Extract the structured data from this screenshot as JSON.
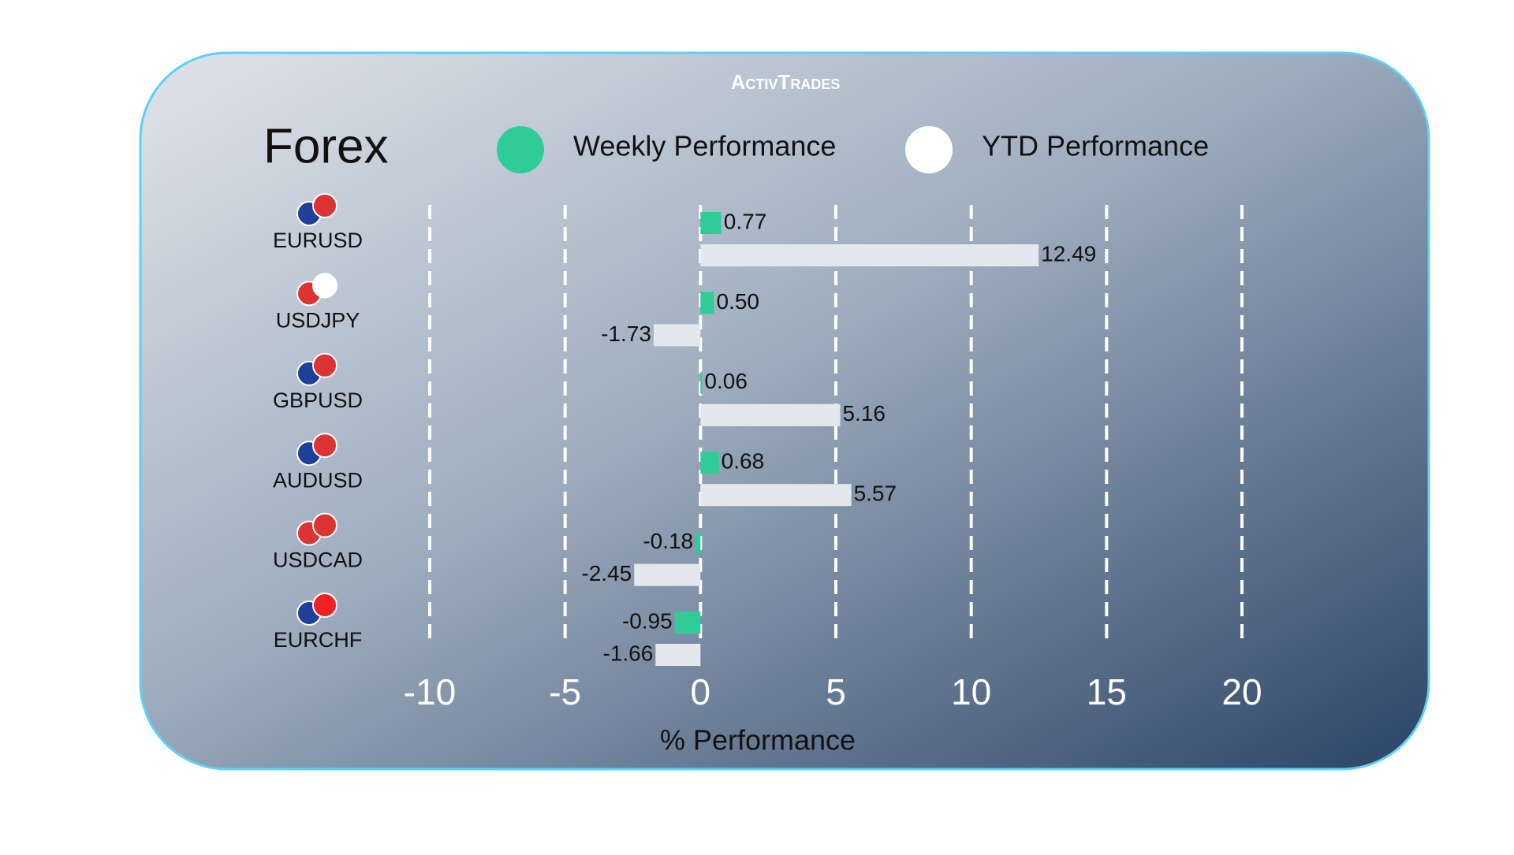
{
  "brand": "ActivTrades",
  "chart_data": {
    "type": "hbar",
    "title": "Forex",
    "x_label": "% Performance",
    "categories": [
      "EURUSD",
      "USDJPY",
      "GBPUSD",
      "AUDUSD",
      "USDCAD",
      "EURCHF"
    ],
    "series": [
      {
        "name": "Weekly Performance",
        "color": "#2fcc98",
        "values": [
          0.77,
          0.5,
          0.06,
          0.68,
          -0.18,
          -0.95
        ],
        "value_labels": [
          "0.77",
          "0.50",
          "0.06",
          "0.68",
          "-0.18",
          "-0.95"
        ]
      },
      {
        "name": "YTD Performance",
        "color": "#e4e8ee",
        "values": [
          12.49,
          -1.73,
          5.16,
          5.57,
          -2.45,
          -1.66
        ],
        "value_labels": [
          "12.49",
          "-1.73",
          "5.16",
          "5.57",
          "-2.45",
          "-1.66"
        ]
      }
    ],
    "xlim": [
      -10,
      20
    ],
    "xticks": [
      -10,
      -5,
      0,
      5,
      10,
      15,
      20
    ],
    "grid": true
  }
}
